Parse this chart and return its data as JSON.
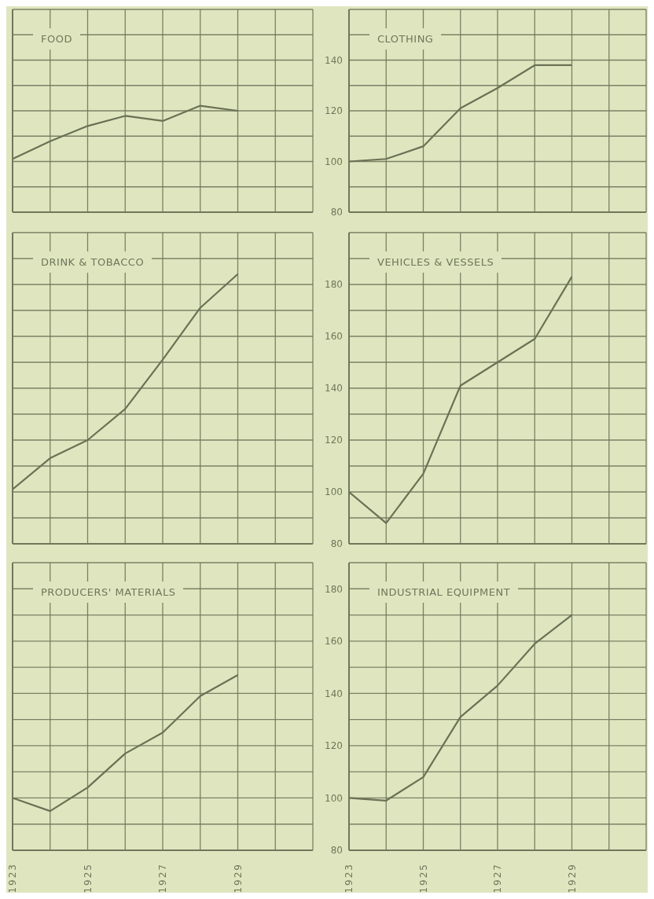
{
  "chart_data": [
    {
      "type": "line",
      "title": "FOOD",
      "x": [
        1923,
        1924,
        1925,
        1926,
        1927,
        1928,
        1929
      ],
      "series": [
        {
          "color": "#6a7155",
          "values": [
            101,
            108,
            114,
            118,
            116,
            122,
            120
          ]
        }
      ],
      "xlim": [
        1923,
        1931
      ],
      "xticks": [
        1923,
        {
          "value": 1924,
          "label": null
        },
        1925,
        {
          "value": 1926,
          "label": null
        },
        1927,
        {
          "value": 1928,
          "label": null
        },
        1929,
        {
          "value": 1930,
          "label": null
        },
        {
          "value": 1931,
          "label": null
        }
      ],
      "ylim": [
        80,
        160
      ],
      "yticks": [
        80,
        {
          "value": 90,
          "label": null
        },
        100,
        {
          "value": 110,
          "label": null
        },
        120,
        {
          "value": 130,
          "label": null
        },
        140,
        {
          "value": 150,
          "label": null
        },
        {
          "value": 160,
          "label": null
        }
      ],
      "grid": true,
      "tick_labels": false
    },
    {
      "type": "line",
      "title": "CLOTHING",
      "x": [
        1923,
        1924,
        1925,
        1926,
        1927,
        1928,
        1929
      ],
      "series": [
        {
          "color": "#6a7155",
          "values": [
            100,
            101,
            106,
            121,
            129,
            138,
            138
          ]
        }
      ],
      "xlim": [
        1923,
        1931
      ],
      "xticks": [
        1923,
        {
          "value": 1924,
          "label": null
        },
        1925,
        {
          "value": 1926,
          "label": null
        },
        1927,
        {
          "value": 1928,
          "label": null
        },
        1929,
        {
          "value": 1930,
          "label": null
        },
        {
          "value": 1931,
          "label": null
        }
      ],
      "ylim": [
        80,
        160
      ],
      "yticks": [
        80,
        {
          "value": 90,
          "label": null
        },
        100,
        {
          "value": 110,
          "label": null
        },
        120,
        {
          "value": 130,
          "label": null
        },
        140,
        {
          "value": 150,
          "label": null
        },
        {
          "value": 160,
          "label": null
        }
      ],
      "grid": true,
      "tick_labels": "y"
    },
    {
      "type": "line",
      "title": "DRINK & TOBACCO",
      "x": [
        1923,
        1924,
        1925,
        1926,
        1927,
        1928,
        1929
      ],
      "series": [
        {
          "color": "#6a7155",
          "values": [
            101,
            113,
            120,
            132,
            151,
            171,
            184
          ]
        }
      ],
      "xlim": [
        1923,
        1931
      ],
      "xticks": [
        1923,
        {
          "value": 1924,
          "label": null
        },
        1925,
        {
          "value": 1926,
          "label": null
        },
        1927,
        {
          "value": 1928,
          "label": null
        },
        1929,
        {
          "value": 1930,
          "label": null
        },
        {
          "value": 1931,
          "label": null
        }
      ],
      "ylim": [
        80,
        200
      ],
      "yticks": [
        80,
        {
          "value": 90,
          "label": null
        },
        100,
        {
          "value": 110,
          "label": null
        },
        120,
        {
          "value": 130,
          "label": null
        },
        140,
        {
          "value": 150,
          "label": null
        },
        160,
        {
          "value": 170,
          "label": null
        },
        180,
        {
          "value": 190,
          "label": null
        },
        {
          "value": 200,
          "label": null
        }
      ],
      "grid": true,
      "tick_labels": false
    },
    {
      "type": "line",
      "title": "VEHICLES & VESSELS",
      "x": [
        1923,
        1924,
        1925,
        1926,
        1927,
        1928,
        1929
      ],
      "series": [
        {
          "color": "#6a7155",
          "values": [
            100,
            88,
            107,
            141,
            150,
            159,
            183
          ]
        }
      ],
      "xlim": [
        1923,
        1931
      ],
      "xticks": [
        1923,
        {
          "value": 1924,
          "label": null
        },
        1925,
        {
          "value": 1926,
          "label": null
        },
        1927,
        {
          "value": 1928,
          "label": null
        },
        1929,
        {
          "value": 1930,
          "label": null
        },
        {
          "value": 1931,
          "label": null
        }
      ],
      "ylim": [
        80,
        200
      ],
      "yticks": [
        80,
        {
          "value": 90,
          "label": null
        },
        100,
        {
          "value": 110,
          "label": null
        },
        120,
        {
          "value": 130,
          "label": null
        },
        140,
        {
          "value": 150,
          "label": null
        },
        160,
        {
          "value": 170,
          "label": null
        },
        180,
        {
          "value": 190,
          "label": null
        },
        {
          "value": 200,
          "label": null
        }
      ],
      "grid": true,
      "tick_labels": "y"
    },
    {
      "type": "line",
      "title": "PRODUCERS' MATERIALS",
      "x": [
        1923,
        1924,
        1925,
        1926,
        1927,
        1928,
        1929
      ],
      "series": [
        {
          "color": "#6a7155",
          "values": [
            100,
            95,
            104,
            117,
            125,
            139,
            147
          ]
        }
      ],
      "xlim": [
        1923,
        1931
      ],
      "xticks": [
        1923,
        {
          "value": 1924,
          "label": null
        },
        1925,
        {
          "value": 1926,
          "label": null
        },
        1927,
        {
          "value": 1928,
          "label": null
        },
        1929,
        {
          "value": 1930,
          "label": null
        },
        {
          "value": 1931,
          "label": null
        }
      ],
      "ylim": [
        80,
        190
      ],
      "yticks": [
        80,
        {
          "value": 90,
          "label": null
        },
        100,
        {
          "value": 110,
          "label": null
        },
        120,
        {
          "value": 130,
          "label": null
        },
        140,
        {
          "value": 150,
          "label": null
        },
        160,
        {
          "value": 170,
          "label": null
        },
        180,
        {
          "value": 190,
          "label": null
        }
      ],
      "grid": true,
      "tick_labels": "x"
    },
    {
      "type": "line",
      "title": "INDUSTRIAL EQUIPMENT",
      "x": [
        1923,
        1924,
        1925,
        1926,
        1927,
        1928,
        1929
      ],
      "series": [
        {
          "color": "#6a7155",
          "values": [
            100,
            99,
            108,
            131,
            143,
            159,
            170
          ]
        }
      ],
      "xlim": [
        1923,
        1931
      ],
      "xticks": [
        1923,
        {
          "value": 1924,
          "label": null
        },
        1925,
        {
          "value": 1926,
          "label": null
        },
        1927,
        {
          "value": 1928,
          "label": null
        },
        1929,
        {
          "value": 1930,
          "label": null
        },
        {
          "value": 1931,
          "label": null
        }
      ],
      "ylim": [
        80,
        190
      ],
      "yticks": [
        80,
        {
          "value": 90,
          "label": null
        },
        100,
        {
          "value": 110,
          "label": null
        },
        120,
        {
          "value": 130,
          "label": null
        },
        140,
        {
          "value": 150,
          "label": null
        },
        160,
        {
          "value": 170,
          "label": null
        },
        180,
        {
          "value": 190,
          "label": null
        }
      ],
      "grid": true
    }
  ]
}
